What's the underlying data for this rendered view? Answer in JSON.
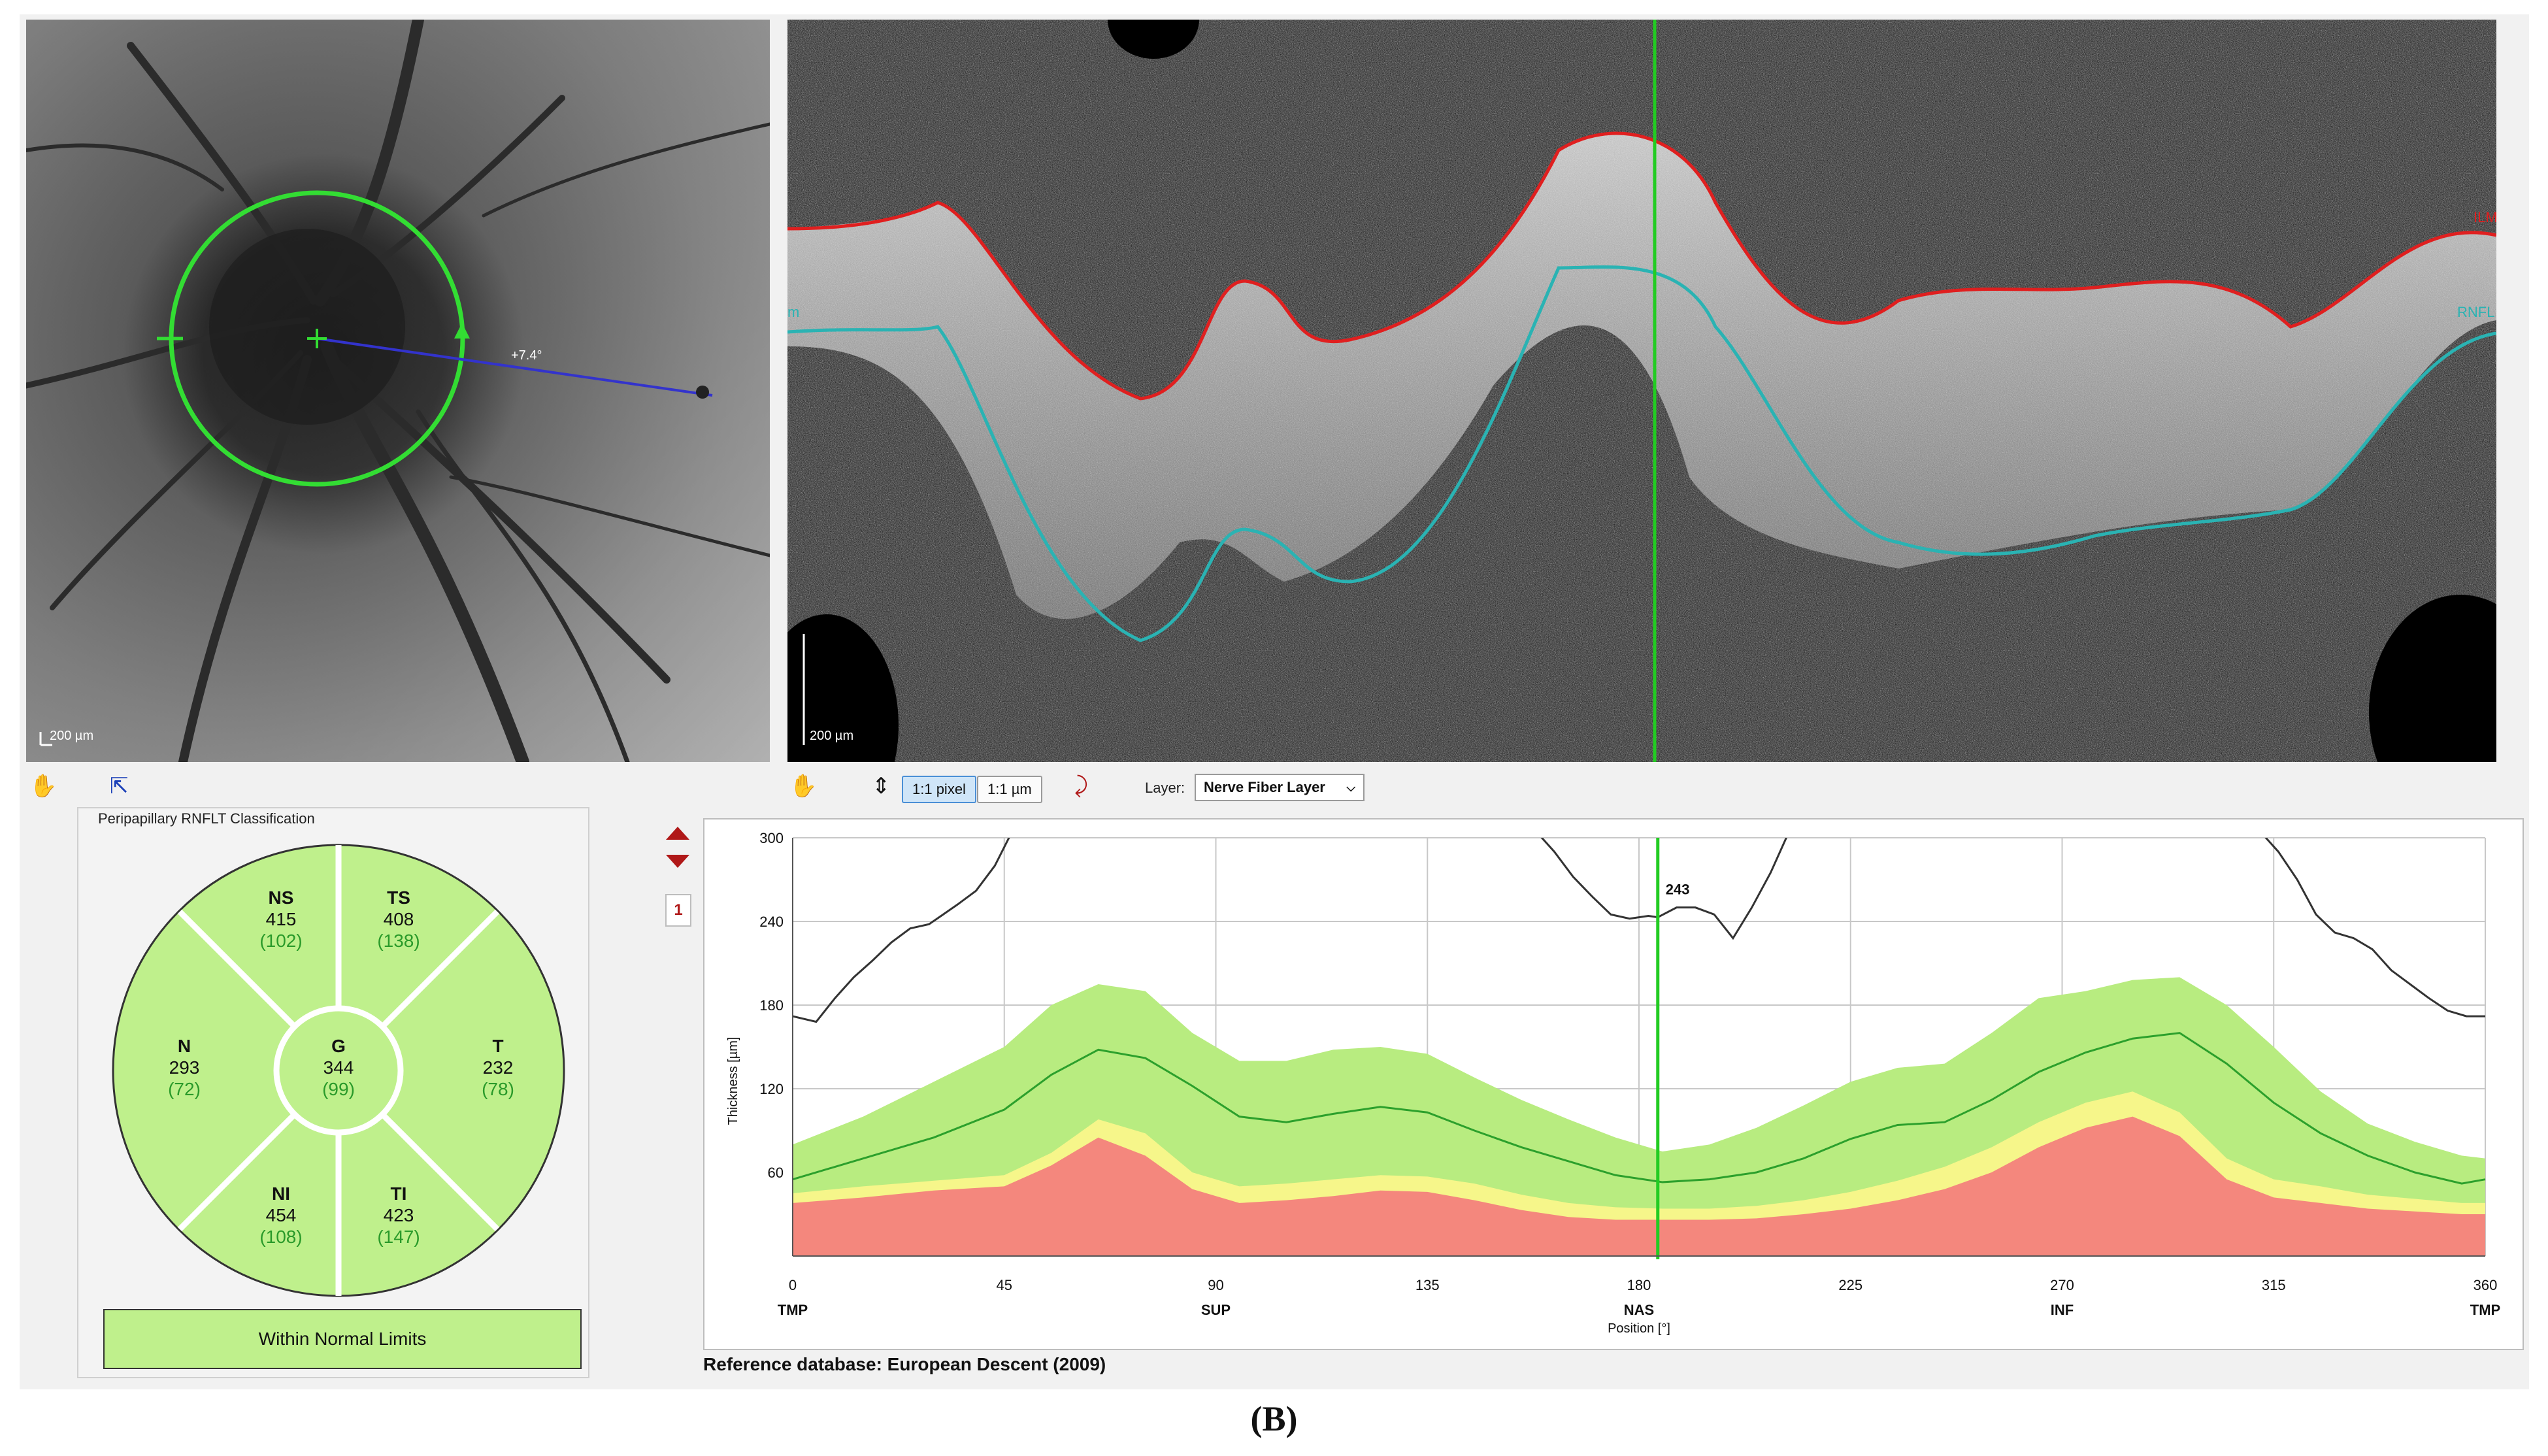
{
  "fundus": {
    "scale_label": "200 µm",
    "angle_label": "+7.4°"
  },
  "bscan": {
    "scale_label": "200 µm",
    "ilm_label": "ILM",
    "rnfl_label": "RNFL",
    "left_edge_label": "m"
  },
  "toolbar": {
    "pixel_btn": "1:1 pixel",
    "um_btn": "1:1 µm",
    "layer_label": "Layer:",
    "layer_value": "Nerve Fiber Layer",
    "icons": [
      "hand-icon",
      "pointer-icon",
      "scale-icon",
      "layer-pointer-icon",
      "chevron-down-icon"
    ]
  },
  "classification": {
    "title": "Peripapillary RNFLT Classification",
    "sectors": [
      {
        "code": "NS",
        "value": "415",
        "ref": "(102)"
      },
      {
        "code": "TS",
        "value": "408",
        "ref": "(138)"
      },
      {
        "code": "N",
        "value": "293",
        "ref": "(72)"
      },
      {
        "code": "G",
        "value": "344",
        "ref": "(99)"
      },
      {
        "code": "T",
        "value": "232",
        "ref": "(78)"
      },
      {
        "code": "NI",
        "value": "454",
        "ref": "(108)"
      },
      {
        "code": "TI",
        "value": "423",
        "ref": "(147)"
      }
    ],
    "result": "Within Normal Limits",
    "colors": {
      "normal": "#bff08c",
      "ref_text": "#2a9a2a"
    }
  },
  "page_badge": "1",
  "reference_db": "Reference database: European Descent (2009)",
  "caption": "(B)",
  "chart_data": {
    "type": "line",
    "xlabel": "Position [°]",
    "ylabel": "Thickness [µm]",
    "xlim": [
      0,
      360
    ],
    "ylim": [
      0,
      300
    ],
    "x_ticks": [
      "0",
      "45",
      "90",
      "135",
      "180",
      "225",
      "270",
      "315",
      "360"
    ],
    "y_ticks": [
      "60",
      "120",
      "180",
      "240",
      "300"
    ],
    "position_labels": [
      {
        "x": 0,
        "label": "TMP"
      },
      {
        "x": 90,
        "label": "SUP"
      },
      {
        "x": 180,
        "label": "NAS"
      },
      {
        "x": 270,
        "label": "INF"
      },
      {
        "x": 360,
        "label": "TMP"
      }
    ],
    "cursor": {
      "x": 184,
      "label": "243"
    },
    "grid": true,
    "colors": {
      "red": "#f4877d",
      "yellow": "#f6f68a",
      "green_band": "#b8ec80",
      "mean": "#2ca02c",
      "measured": "#333333",
      "cursor": "#22cc22"
    },
    "band_x": [
      0,
      15,
      30,
      45,
      55,
      65,
      75,
      85,
      95,
      105,
      115,
      125,
      135,
      145,
      155,
      165,
      175,
      185,
      195,
      205,
      215,
      225,
      235,
      245,
      255,
      265,
      275,
      285,
      295,
      305,
      315,
      325,
      335,
      345,
      355,
      360
    ],
    "red_top": [
      38,
      42,
      47,
      50,
      65,
      85,
      72,
      48,
      38,
      40,
      43,
      47,
      46,
      40,
      33,
      28,
      26,
      26,
      26,
      27,
      30,
      34,
      40,
      48,
      60,
      78,
      92,
      100,
      86,
      55,
      42,
      38,
      34,
      32,
      30,
      30
    ],
    "yellow_top": [
      45,
      50,
      54,
      58,
      74,
      98,
      88,
      60,
      50,
      52,
      55,
      58,
      57,
      52,
      44,
      38,
      35,
      34,
      34,
      36,
      40,
      46,
      54,
      64,
      78,
      96,
      110,
      118,
      103,
      70,
      55,
      50,
      44,
      41,
      38,
      38
    ],
    "green_top": [
      80,
      100,
      125,
      150,
      180,
      195,
      190,
      160,
      140,
      140,
      148,
      150,
      145,
      128,
      112,
      98,
      85,
      75,
      80,
      92,
      108,
      125,
      135,
      138,
      160,
      185,
      190,
      198,
      200,
      180,
      150,
      118,
      95,
      82,
      72,
      70
    ],
    "mean": [
      55,
      70,
      85,
      105,
      130,
      148,
      142,
      122,
      100,
      96,
      102,
      107,
      103,
      90,
      78,
      68,
      58,
      53,
      55,
      60,
      70,
      84,
      94,
      96,
      112,
      132,
      146,
      156,
      160,
      138,
      110,
      88,
      72,
      60,
      52,
      55
    ],
    "measured_segments": [
      {
        "x": [
          0,
          5,
          9,
          13,
          17,
          21,
          25,
          29,
          32,
          35,
          39,
          43,
          46,
          48
        ],
        "y": [
          172,
          168,
          185,
          200,
          212,
          225,
          235,
          238,
          245,
          252,
          262,
          280,
          300,
          310
        ]
      },
      {
        "x": [
          158,
          162,
          166,
          170,
          174,
          178,
          182,
          184,
          188,
          192,
          196,
          200,
          204,
          208,
          212
        ],
        "y": [
          305,
          290,
          272,
          258,
          245,
          242,
          244,
          243,
          250,
          250,
          245,
          228,
          250,
          275,
          305
        ]
      },
      {
        "x": [
          312,
          316,
          320,
          324,
          328,
          332,
          336,
          340,
          344,
          348,
          352,
          356,
          360
        ],
        "y": [
          305,
          290,
          270,
          245,
          232,
          228,
          220,
          205,
          195,
          185,
          176,
          172,
          172
        ]
      }
    ]
  }
}
